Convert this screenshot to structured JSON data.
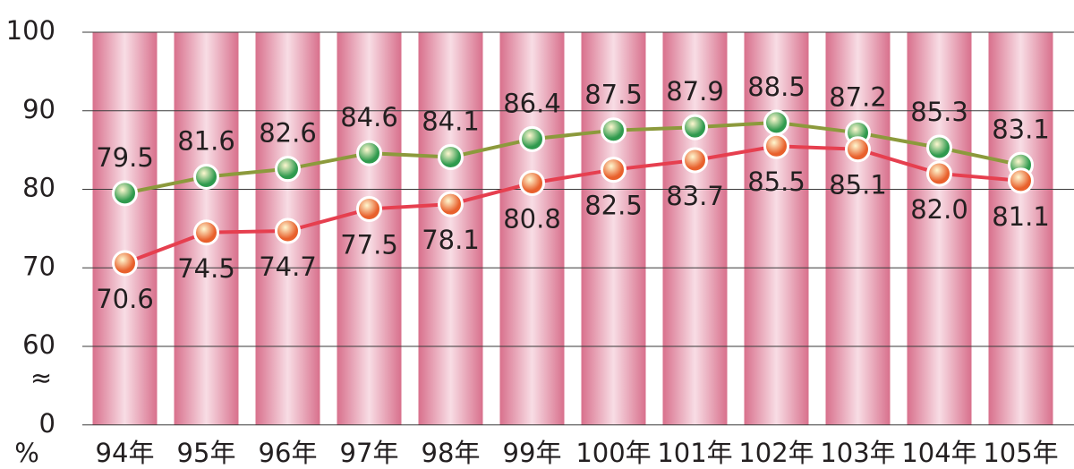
{
  "chart_data": {
    "type": "line",
    "ylabel": "%",
    "axis_break_label": "≈",
    "categories": [
      "94年",
      "95年",
      "96年",
      "97年",
      "98年",
      "99年",
      "100年",
      "101年",
      "102年",
      "103年",
      "104年",
      "105年"
    ],
    "series": [
      {
        "color": "#8c9a3c",
        "marker_color": "#2f9a4e",
        "label_position": "above",
        "values": [
          79.5,
          81.6,
          82.6,
          84.6,
          84.1,
          86.4,
          87.5,
          87.9,
          88.5,
          87.2,
          85.3,
          83.1
        ],
        "value_labels": [
          "79.5",
          "81.6",
          "82.6",
          "84.6",
          "84.1",
          "86.4",
          "87.5",
          "87.9",
          "88.5",
          "87.2",
          "85.3",
          "83.1"
        ]
      },
      {
        "color": "#e63f4f",
        "marker_color": "#e8602c",
        "label_position": "below",
        "values": [
          70.6,
          74.5,
          74.7,
          77.5,
          78.1,
          80.8,
          82.5,
          83.7,
          85.5,
          85.1,
          82.0,
          81.1
        ],
        "value_labels": [
          "70.6",
          "74.5",
          "74.7",
          "77.5",
          "78.1",
          "80.8",
          "82.5",
          "83.7",
          "85.5",
          "85.1",
          "82.0",
          "81.1"
        ]
      }
    ],
    "ylim": [
      0,
      100
    ],
    "yticks": [
      0,
      60,
      70,
      80,
      90,
      100
    ],
    "grid": true
  }
}
